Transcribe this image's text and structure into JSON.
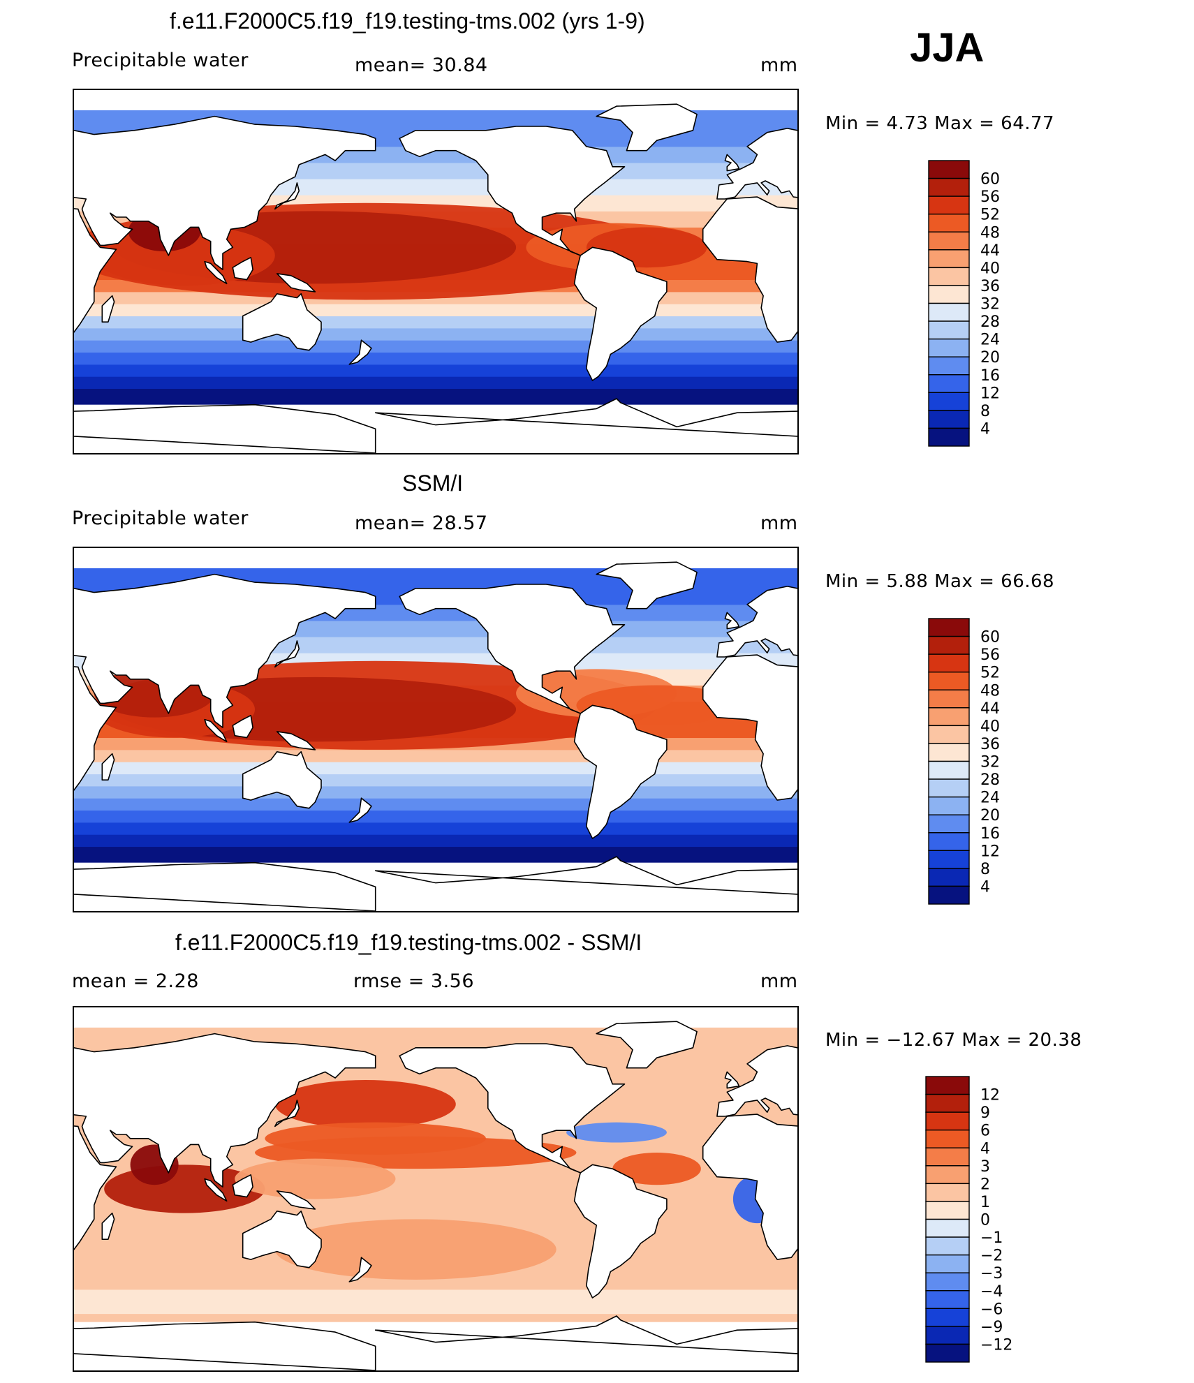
{
  "season": "JJA",
  "panels": [
    {
      "title": "f.e11.F2000C5.f19_f19.testing-tms.002 (yrs 1-9)",
      "left_label": "Precipitable  water",
      "center_label": "mean=   30.84",
      "unit": "mm",
      "minmax": "Min  =    4.73  Max  =   64.77",
      "kind": "abs",
      "colorbar_labels": [
        "60",
        "56",
        "52",
        "48",
        "44",
        "40",
        "36",
        "32",
        "28",
        "24",
        "20",
        "16",
        "12",
        "8",
        "4"
      ]
    },
    {
      "title": "SSM/I",
      "left_label": "Precipitable  water",
      "center_label": "mean=   28.57",
      "unit": "mm",
      "minmax": "Min  =    5.88  Max  =   66.68",
      "kind": "abs",
      "colorbar_labels": [
        "60",
        "56",
        "52",
        "48",
        "44",
        "40",
        "36",
        "32",
        "28",
        "24",
        "20",
        "16",
        "12",
        "8",
        "4"
      ]
    },
    {
      "title": "f.e11.F2000C5.f19_f19.testing-tms.002 - SSM/I",
      "left_label": "mean  =      2.28",
      "center_label": "rmse  =      3.56",
      "unit": "mm",
      "minmax": "Min  = −12.67  Max  =    20.38",
      "kind": "diff",
      "colorbar_labels": [
        "12",
        "9",
        "6",
        "4",
        "3",
        "2",
        "1",
        "0",
        "−1",
        "−2",
        "−3",
        "−4",
        "−6",
        "−9",
        "−12"
      ]
    }
  ],
  "palettes": {
    "abs": [
      "#8a0a0a",
      "#b3200c",
      "#d73512",
      "#ec5a24",
      "#f47d48",
      "#f8a071",
      "#fbc5a3",
      "#fde6d3",
      "#dde9f8",
      "#b5cff5",
      "#8cb2f2",
      "#5f8cf0",
      "#3564ea",
      "#1642d8",
      "#0a28b4",
      "#06127f"
    ],
    "diff": [
      "#8a0a0a",
      "#b3200c",
      "#d73512",
      "#ec5a24",
      "#f47d48",
      "#f8a071",
      "#fbc5a3",
      "#fde6d3",
      "#dde9f8",
      "#b5cff5",
      "#8cb2f2",
      "#5f8cf0",
      "#3564ea",
      "#1642d8",
      "#0a28b4",
      "#06127f"
    ]
  }
}
